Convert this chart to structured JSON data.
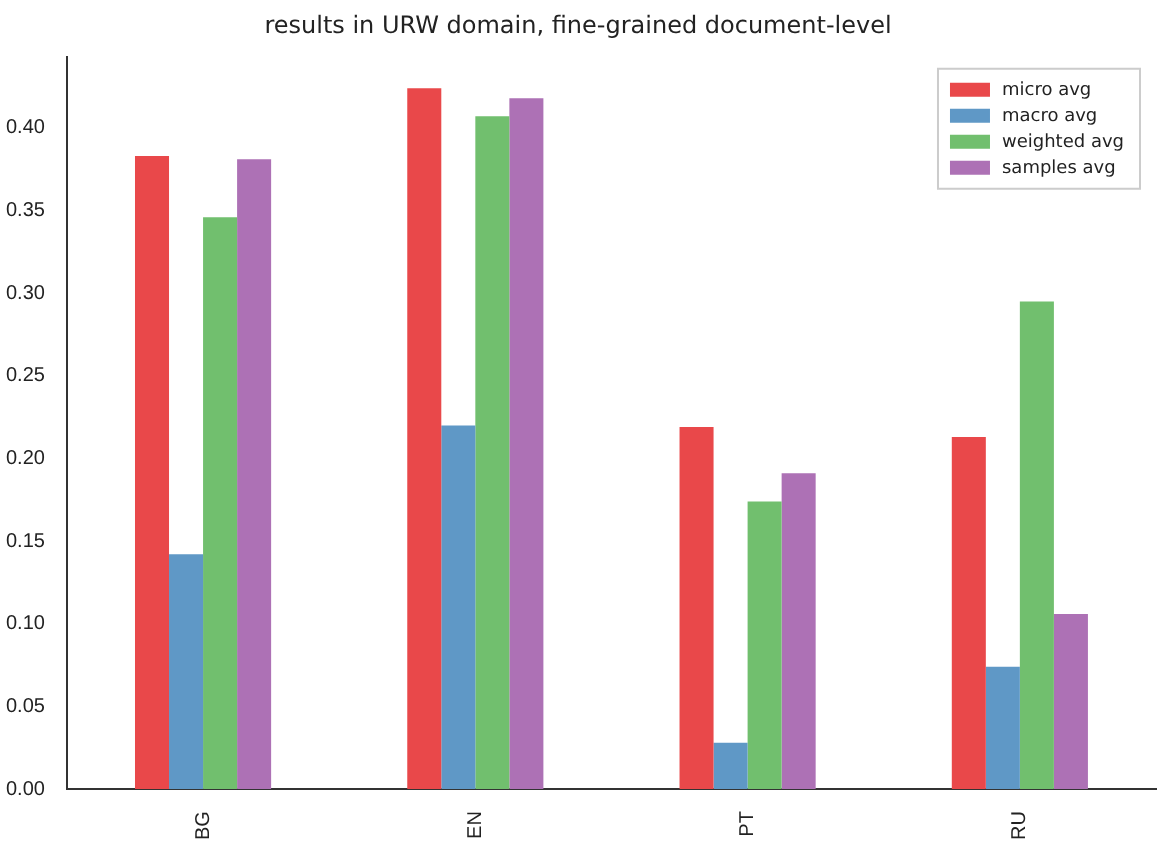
{
  "chart_data": {
    "type": "bar",
    "title": "results in URW domain, fine-grained document-level",
    "categories": [
      "BG",
      "EN",
      "PT",
      "RU"
    ],
    "series": [
      {
        "name": "micro avg",
        "color": "#e9484a",
        "values": [
          0.383,
          0.424,
          0.219,
          0.213
        ]
      },
      {
        "name": "macro avg",
        "color": "#5f98c6",
        "values": [
          0.142,
          0.22,
          0.028,
          0.074
        ]
      },
      {
        "name": "weighted avg",
        "color": "#71bf6e",
        "values": [
          0.346,
          0.407,
          0.174,
          0.295
        ]
      },
      {
        "name": "samples avg",
        "color": "#ad71b5",
        "values": [
          0.381,
          0.418,
          0.191,
          0.106
        ]
      }
    ],
    "ylim": [
      0,
      0.443
    ],
    "yticks": [
      {
        "value": 0,
        "label": "0.00"
      },
      {
        "value": 0.05,
        "label": "0.05"
      },
      {
        "value": 0.1,
        "label": "0.10"
      },
      {
        "value": 0.15,
        "label": "0.15"
      },
      {
        "value": 0.2,
        "label": "0.20"
      },
      {
        "value": 0.25,
        "label": "0.25"
      },
      {
        "value": 0.3,
        "label": "0.30"
      },
      {
        "value": 0.35,
        "label": "0.35"
      },
      {
        "value": 0.4,
        "label": "0.40"
      }
    ],
    "grid": false,
    "legend": "top right"
  }
}
